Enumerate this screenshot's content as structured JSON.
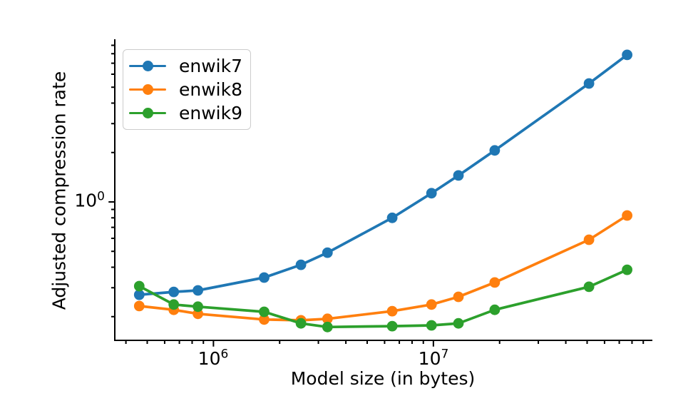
{
  "chart_data": {
    "type": "line",
    "title": "",
    "xlabel": "Model size (in bytes)",
    "ylabel": "Adjusted compression rate",
    "xscale": "log",
    "yscale": "log",
    "xlim": [
      356000,
      99000000
    ],
    "ylim": [
      0.1434,
      9.8
    ],
    "grid": false,
    "legend_position": "upper left",
    "x": [
      460000,
      660000,
      850000,
      1700000,
      2500000,
      3300000,
      6500000,
      9800000,
      13000000,
      19000000,
      51000000,
      76000000
    ],
    "series": [
      {
        "name": "enwik7",
        "color": "#1f77b4",
        "values": [
          0.272,
          0.283,
          0.289,
          0.346,
          0.414,
          0.491,
          0.8,
          1.13,
          1.45,
          2.06,
          5.27,
          7.87
        ]
      },
      {
        "name": "enwik8",
        "color": "#ff7f0e",
        "values": [
          0.232,
          0.22,
          0.208,
          0.192,
          0.19,
          0.194,
          0.216,
          0.237,
          0.264,
          0.323,
          0.588,
          0.827
        ]
      },
      {
        "name": "enwik9",
        "color": "#2ca02c",
        "values": [
          0.307,
          0.237,
          0.23,
          0.214,
          0.182,
          0.173,
          0.175,
          0.177,
          0.182,
          0.22,
          0.304,
          0.386
        ]
      }
    ],
    "x_major_ticks": [
      1000000,
      10000000
    ],
    "y_major_ticks": [
      1
    ]
  },
  "axis_ticks": {
    "x": [
      {
        "base": "10",
        "exp": "6"
      },
      {
        "base": "10",
        "exp": "7"
      }
    ],
    "y": [
      {
        "base": "10",
        "exp": "0"
      }
    ]
  },
  "legend": {
    "labels": [
      "enwik7",
      "enwik8",
      "enwik9"
    ]
  },
  "colors": {
    "enwik7": "#1f77b4",
    "enwik8": "#ff7f0e",
    "enwik9": "#2ca02c",
    "axis": "#000000",
    "legend_border": "#cccccc",
    "background": "#ffffff"
  }
}
